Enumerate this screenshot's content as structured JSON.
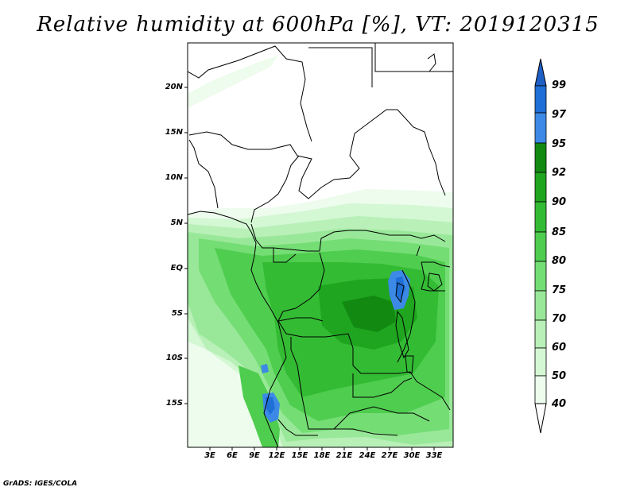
{
  "title": "Relative humidity at 600hPa [%], VT: 2019120315",
  "credit": "GrADS: IGES/COLA",
  "map": {
    "y_ticks": [
      "20N",
      "15N",
      "10N",
      "5N",
      "EQ",
      "5S",
      "10S",
      "15S"
    ],
    "x_ticks": [
      "3E",
      "6E",
      "9E",
      "12E",
      "15E",
      "18E",
      "21E",
      "24E",
      "27E",
      "30E",
      "33E"
    ]
  },
  "colorbar": {
    "labels": [
      "99",
      "97",
      "95",
      "92",
      "90",
      "85",
      "80",
      "75",
      "70",
      "60",
      "50",
      "40"
    ],
    "colors": [
      "#1e6fd6",
      "#3c8ae6",
      "#66aaf2",
      "#128a12",
      "#1fa51f",
      "#34bb34",
      "#4fcd4f",
      "#74dd74",
      "#99e899",
      "#b8f0b8",
      "#d4f7d4",
      "#edfced"
    ],
    "accent_top": "#1e5fc6"
  }
}
